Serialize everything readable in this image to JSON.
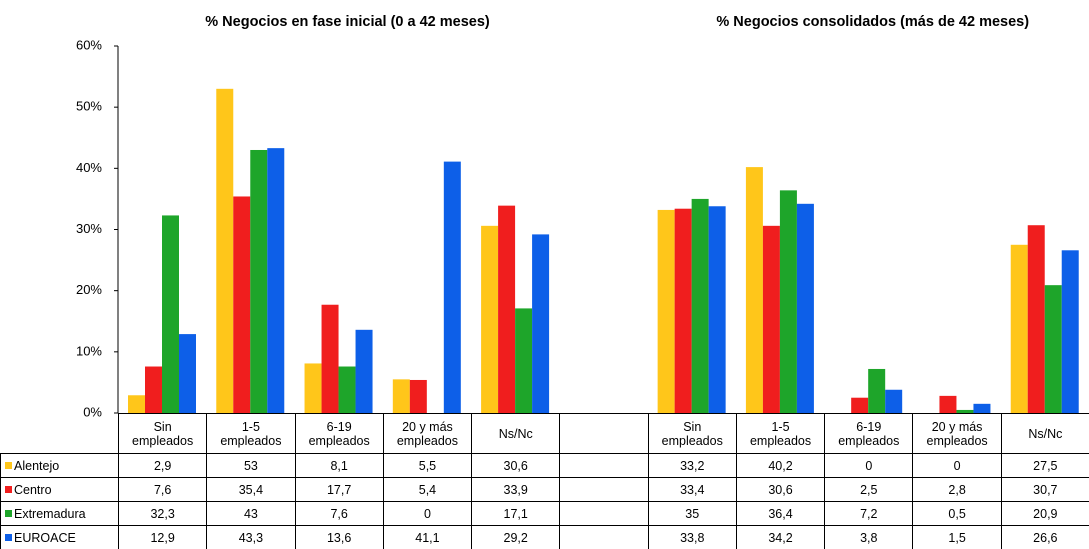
{
  "chart_data": {
    "type": "bar",
    "annotations": [
      "% Negocios en fase inicial (0 a 42 meses)",
      "% Negocios consolidados (más de 42 meses)"
    ],
    "categories": [
      "Sin empleados",
      "1-5 empleados",
      "6-19 empleados",
      "20 y más empleados",
      "Ns/Nc",
      null,
      "Sin empleados",
      "1-5 empleados",
      "6-19 empleados",
      "20 y más empleados",
      "Ns/Nc"
    ],
    "series": [
      {
        "name": "Alentejo",
        "color": "#ffc61a",
        "values": [
          2.9,
          53,
          8.1,
          5.5,
          30.6,
          null,
          33.2,
          40.2,
          0,
          0,
          27.5
        ],
        "value_labels": [
          "2,9",
          "53",
          "8,1",
          "5,5",
          "30,6",
          null,
          "33,2",
          "40,2",
          "0",
          "0",
          "27,5"
        ]
      },
      {
        "name": "Centro",
        "color": "#f01e1e",
        "values": [
          7.6,
          35.4,
          17.7,
          5.4,
          33.9,
          null,
          33.4,
          30.6,
          2.5,
          2.8,
          30.7
        ],
        "value_labels": [
          "7,6",
          "35,4",
          "17,7",
          "5,4",
          "33,9",
          null,
          "33,4",
          "30,6",
          "2,5",
          "2,8",
          "30,7"
        ]
      },
      {
        "name": "Extremadura",
        "color": "#1ea52a",
        "values": [
          32.3,
          43,
          7.6,
          0,
          17.1,
          null,
          35,
          36.4,
          7.2,
          0.5,
          20.9
        ],
        "value_labels": [
          "32,3",
          "43",
          "7,6",
          "0",
          "17,1",
          null,
          "35",
          "36,4",
          "7,2",
          "0,5",
          "20,9"
        ]
      },
      {
        "name": "EUROACE",
        "color": "#0d5fe8",
        "values": [
          12.9,
          43.3,
          13.6,
          41.1,
          29.2,
          null,
          33.8,
          34.2,
          3.8,
          1.5,
          26.6
        ],
        "value_labels": [
          "12,9",
          "43,3",
          "13,6",
          "41,1",
          "29,2",
          null,
          "33,8",
          "34,2",
          "3,8",
          "1,5",
          "26,6"
        ]
      }
    ],
    "ylim": [
      0,
      60
    ],
    "yticks": [
      {
        "value": 0,
        "label": "0%"
      },
      {
        "value": 10,
        "label": "10%"
      },
      {
        "value": 20,
        "label": "20%"
      },
      {
        "value": 30,
        "label": "30%"
      },
      {
        "value": 40,
        "label": "40%"
      },
      {
        "value": 50,
        "label": "50%"
      },
      {
        "value": 60,
        "label": "60%"
      }
    ],
    "grid": false
  }
}
